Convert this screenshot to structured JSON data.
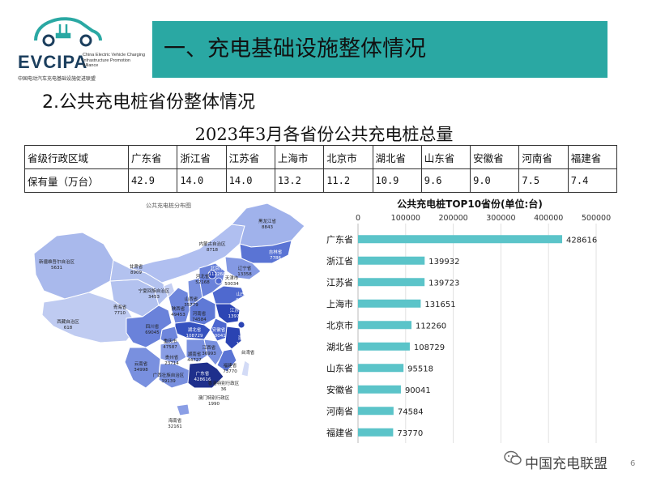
{
  "logo": {
    "name": "EVCIPA",
    "subtitle_en": "China Electric Vehicle Charging Infrastructure Promotion Alliance",
    "subtitle_cn": "中国电动汽车充电基础设施促进联盟"
  },
  "header": {
    "title": "一、充电基础设施整体情况"
  },
  "section": {
    "title": "2.公共充电桩省份整体情况"
  },
  "table": {
    "title": "2023年3月各省份公共充电桩总量",
    "row_labels": [
      "省级行政区域",
      "保有量（万台）"
    ],
    "provinces": [
      "广东省",
      "浙江省",
      "江苏省",
      "上海市",
      "北京市",
      "湖北省",
      "山东省",
      "安徽省",
      "河南省",
      "福建省"
    ],
    "values": [
      "42.9",
      "14.0",
      "14.0",
      "13.2",
      "11.2",
      "10.9",
      "9.6",
      "9.0",
      "7.5",
      "7.4"
    ]
  },
  "map": {
    "title": "公共充电桩分布图",
    "labels": [
      {
        "name": "黑龙江省",
        "value": "8843"
      },
      {
        "name": "吉林省",
        "value": "7786"
      },
      {
        "name": "辽宁省",
        "value": "13358"
      },
      {
        "name": "内蒙古自治区",
        "value": "8718"
      },
      {
        "name": "新疆维吾尔自治区",
        "value": "5631"
      },
      {
        "name": "甘肃省",
        "value": "8909"
      },
      {
        "name": "北京市",
        "value": "112260"
      },
      {
        "name": "天津市",
        "value": "50034"
      },
      {
        "name": "河北省",
        "value": "52168"
      },
      {
        "name": "宁夏回族自治区",
        "value": "3453"
      },
      {
        "name": "山东省",
        "value": "95518"
      },
      {
        "name": "山西省",
        "value": "35779"
      },
      {
        "name": "青海省",
        "value": "7710"
      },
      {
        "name": "陕西省",
        "value": "49453"
      },
      {
        "name": "河南省",
        "value": "74584"
      },
      {
        "name": "江苏省",
        "value": "139723"
      },
      {
        "name": "安徽省",
        "value": "90041"
      },
      {
        "name": "西藏自治区",
        "value": "618"
      },
      {
        "name": "湖北省",
        "value": "108729"
      },
      {
        "name": "浙江省",
        "value": "139932"
      },
      {
        "name": "上海市",
        "value": "131651"
      },
      {
        "name": "四川省",
        "value": "69045"
      },
      {
        "name": "重庆市",
        "value": "47587"
      },
      {
        "name": "湖南省",
        "value": "44727"
      },
      {
        "name": "江西省",
        "value": "36993"
      },
      {
        "name": "福建省",
        "value": "73770"
      },
      {
        "name": "台湾省",
        "value": ""
      },
      {
        "name": "贵州省",
        "value": "23714"
      },
      {
        "name": "云南省",
        "value": "34998"
      },
      {
        "name": "广西壮族自治区",
        "value": "39139"
      },
      {
        "name": "广东省",
        "value": "428616"
      },
      {
        "name": "香港特别行政区",
        "value": "36"
      },
      {
        "name": "澳门特别行政区",
        "value": "1990"
      },
      {
        "name": "海南省",
        "value": "32161"
      }
    ]
  },
  "chart_data": {
    "type": "bar",
    "orientation": "horizontal",
    "title": "公共充电桩TOP10省份(单位:台)",
    "categories": [
      "广东省",
      "浙江省",
      "江苏省",
      "上海市",
      "北京市",
      "湖北省",
      "山东省",
      "安徽省",
      "河南省",
      "福建省"
    ],
    "values": [
      428616,
      139932,
      139723,
      131651,
      112260,
      108729,
      95518,
      90041,
      74584,
      73770
    ],
    "xlim": [
      0,
      500000
    ],
    "xticks": [
      0,
      100000,
      200000,
      300000,
      400000,
      500000
    ],
    "grid": true,
    "bar_color": "#5bc4c9"
  },
  "footer": {
    "watermark": "中国充电联盟",
    "page": "6"
  }
}
